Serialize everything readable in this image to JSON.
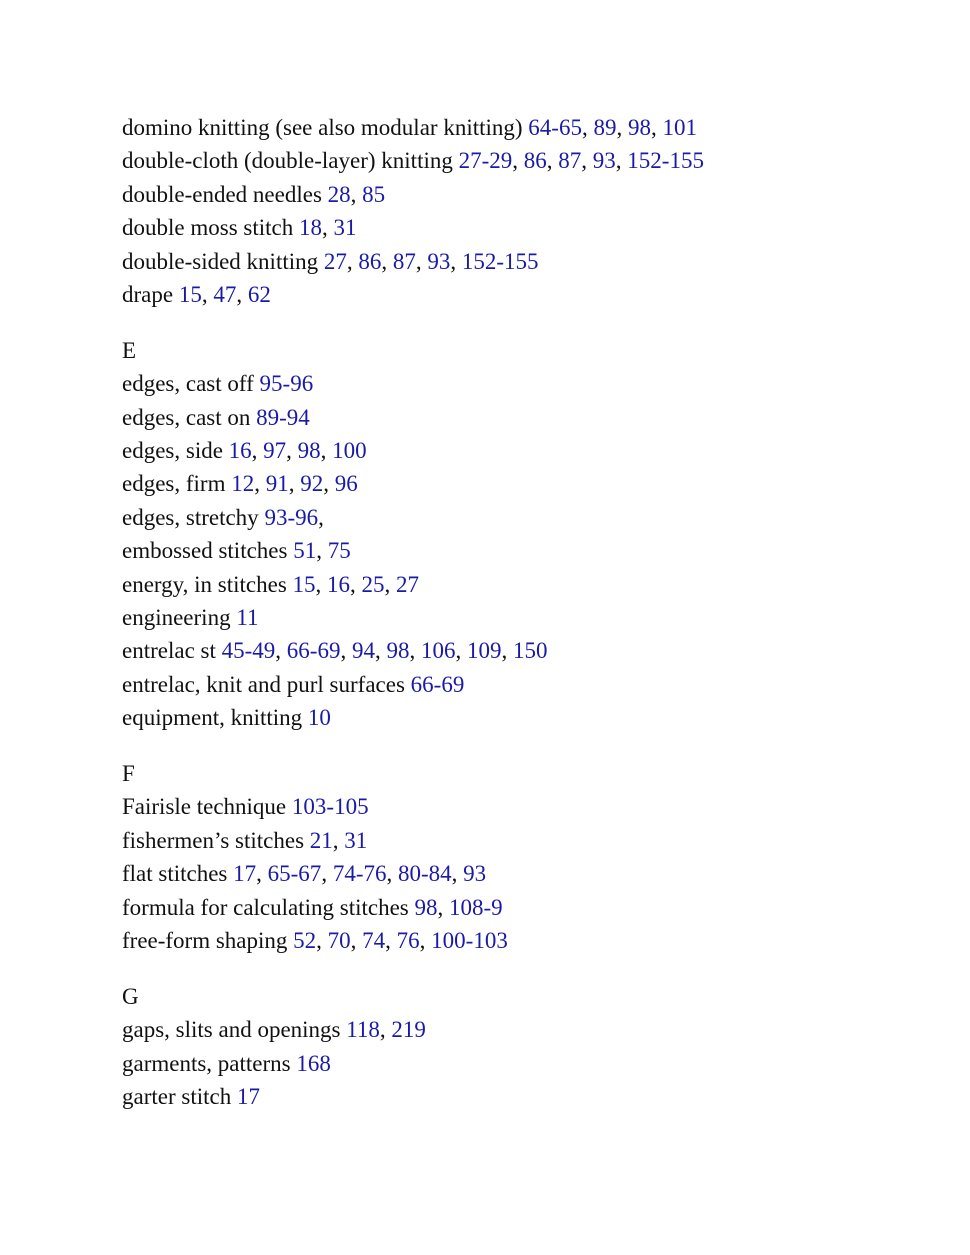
{
  "link_color": "#1a1aa8",
  "sections": [
    {
      "heading": "",
      "entries": [
        {
          "term": "domino knitting (see also modular knitting)",
          "pages": [
            "64-65",
            "89",
            "98",
            "101"
          ]
        },
        {
          "term": "double-cloth (double-layer) knitting",
          "pages": [
            "27-29",
            "86",
            "87",
            "93",
            "152-155"
          ]
        },
        {
          "term": "double-ended needles",
          "pages": [
            "28",
            "85"
          ]
        },
        {
          "term": "double moss stitch",
          "pages": [
            "18",
            "31"
          ]
        },
        {
          "term": "double-sided knitting",
          "pages": [
            "27",
            "86",
            "87",
            "93",
            "152-155"
          ]
        },
        {
          "term": "drape",
          "pages": [
            "15",
            "47",
            "62"
          ]
        }
      ]
    },
    {
      "heading": "E",
      "entries": [
        {
          "term": "edges, cast off",
          "pages": [
            "95-96"
          ]
        },
        {
          "term": "edges, cast on",
          "pages": [
            "89-94"
          ]
        },
        {
          "term": "edges, side",
          "pages": [
            "16",
            "97",
            "98",
            "100"
          ]
        },
        {
          "term": "edges, firm",
          "pages": [
            "12",
            "91",
            "92",
            "96"
          ]
        },
        {
          "term": "edges, stretchy",
          "pages": [
            "93-96"
          ],
          "trailing": ","
        },
        {
          "term": "embossed stitches",
          "pages": [
            "51",
            "75"
          ]
        },
        {
          "term": "energy, in stitches",
          "pages": [
            "15",
            "16",
            "25",
            "27"
          ]
        },
        {
          "term": "engineering",
          "pages": [
            "11"
          ]
        },
        {
          "term": "entrelac st",
          "pages": [
            "45-49",
            "66-69",
            "94",
            "98",
            "106",
            "109",
            "150"
          ]
        },
        {
          "term": "entrelac, knit and purl surfaces",
          "pages": [
            "66-69"
          ]
        },
        {
          "term": "equipment, knitting",
          "pages": [
            "10"
          ]
        }
      ]
    },
    {
      "heading": "F",
      "entries": [
        {
          "term": "Fairisle technique",
          "pages": [
            "103-105"
          ]
        },
        {
          "term": "fishermen’s stitches",
          "pages": [
            "21",
            "31"
          ]
        },
        {
          "term": "flat stitches",
          "pages": [
            "17",
            "65-67",
            "74-76",
            "80-84",
            "93"
          ]
        },
        {
          "term": "formula for calculating stitches",
          "pages": [
            "98",
            "108-9"
          ]
        },
        {
          "term": "free-form shaping",
          "pages": [
            "52",
            "70",
            "74",
            "76",
            "100-103"
          ]
        }
      ]
    },
    {
      "heading": "G",
      "entries": [
        {
          "term": "gaps, slits and openings",
          "pages": [
            "118",
            "219"
          ]
        },
        {
          "term": "garments, patterns",
          "pages": [
            "168"
          ]
        },
        {
          "term": "garter stitch",
          "pages": [
            "17"
          ]
        }
      ]
    }
  ]
}
